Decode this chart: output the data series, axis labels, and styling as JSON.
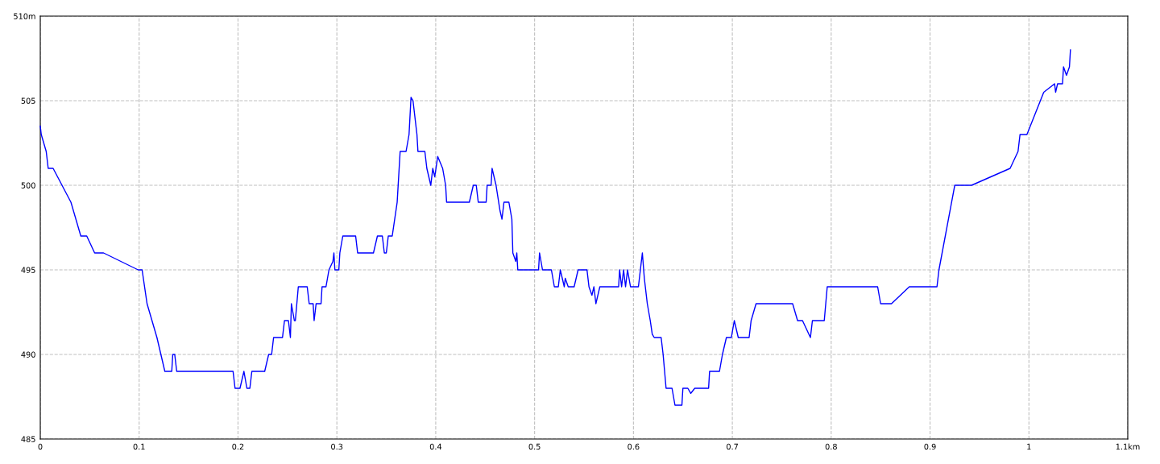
{
  "chart_data": {
    "type": "line",
    "xlim": [
      0,
      1.1
    ],
    "ylim": [
      485,
      510
    ],
    "xticks": [
      0,
      0.1,
      0.2,
      0.3,
      0.4,
      0.5,
      0.6,
      0.7,
      0.8,
      0.9,
      1,
      {
        "value": 1.1,
        "label": "1.1km"
      }
    ],
    "yticks": [
      485,
      490,
      495,
      500,
      505,
      {
        "value": 510,
        "label": "510m"
      }
    ],
    "grid": true,
    "line_style": "solid",
    "marker": "none",
    "series": [
      {
        "color": "#0000ff",
        "x": [
          0,
          0.001,
          0.006,
          0.008,
          0.013,
          0.031,
          0.041,
          0.047,
          0.055,
          0.064,
          0.099,
          0.103,
          0.108,
          0.118,
          0.126,
          0.133,
          0.134,
          0.136,
          0.138,
          0.195,
          0.197,
          0.202,
          0.206,
          0.209,
          0.212,
          0.214,
          0.227,
          0.231,
          0.234,
          0.236,
          0.245,
          0.247,
          0.251,
          0.253,
          0.254,
          0.257,
          0.258,
          0.261,
          0.27,
          0.272,
          0.276,
          0.277,
          0.279,
          0.284,
          0.285,
          0.289,
          0.292,
          0.296,
          0.297,
          0.298,
          0.302,
          0.303,
          0.306,
          0.319,
          0.321,
          0.337,
          0.341,
          0.346,
          0.348,
          0.35,
          0.352,
          0.356,
          0.361,
          0.364,
          0.37,
          0.373,
          0.375,
          0.377,
          0.381,
          0.382,
          0.389,
          0.391,
          0.395,
          0.397,
          0.399,
          0.402,
          0.407,
          0.41,
          0.411,
          0.434,
          0.438,
          0.441,
          0.443,
          0.451,
          0.452,
          0.456,
          0.457,
          0.461,
          0.465,
          0.467,
          0.469,
          0.474,
          0.477,
          0.478,
          0.481,
          0.482,
          0.483,
          0.504,
          0.505,
          0.508,
          0.517,
          0.52,
          0.524,
          0.526,
          0.528,
          0.53,
          0.531,
          0.534,
          0.54,
          0.544,
          0.553,
          0.555,
          0.558,
          0.56,
          0.562,
          0.566,
          0.585,
          0.586,
          0.588,
          0.59,
          0.592,
          0.594,
          0.597,
          0.605,
          0.607,
          0.609,
          0.611,
          0.614,
          0.617,
          0.619,
          0.621,
          0.628,
          0.63,
          0.633,
          0.639,
          0.642,
          0.649,
          0.65,
          0.655,
          0.658,
          0.662,
          0.676,
          0.677,
          0.687,
          0.69,
          0.694,
          0.699,
          0.702,
          0.706,
          0.717,
          0.719,
          0.724,
          0.761,
          0.766,
          0.771,
          0.779,
          0.781,
          0.793,
          0.796,
          0.847,
          0.85,
          0.861,
          0.879,
          0.907,
          0.909,
          0.925,
          0.942,
          0.981,
          0.989,
          0.991,
          0.998,
          1.015,
          1.026,
          1.027,
          1.029,
          1.034,
          1.035,
          1.038,
          1.041,
          1.042
        ],
        "values": [
          503.5,
          503,
          502,
          501,
          501,
          499,
          497,
          497,
          496,
          496,
          495,
          495,
          493,
          491,
          489,
          489,
          490,
          490,
          489,
          489,
          488,
          488,
          489,
          488,
          488,
          489,
          489,
          490,
          490,
          491,
          491,
          492,
          492,
          491,
          493,
          492,
          492,
          494,
          494,
          493,
          493,
          492,
          493,
          493,
          494,
          494,
          495,
          495.5,
          496,
          495,
          495,
          496,
          497,
          497,
          496,
          496,
          497,
          497,
          496,
          496,
          497,
          497,
          499,
          502,
          502,
          503,
          505.2,
          505,
          503,
          502,
          502,
          501,
          500,
          501,
          500.5,
          501.7,
          501,
          500,
          499,
          499,
          500,
          500,
          499,
          499,
          500,
          500,
          501,
          500,
          498.5,
          498,
          499,
          499,
          498,
          496,
          495.5,
          496,
          495,
          495,
          496,
          495,
          495,
          494,
          494,
          495,
          494.5,
          494,
          494.5,
          494,
          494,
          495,
          495,
          494,
          493.5,
          494,
          493,
          494,
          494,
          495,
          494,
          495,
          494,
          495,
          494,
          494,
          495,
          496,
          494.5,
          493,
          492,
          491.2,
          491,
          491,
          490,
          488,
          488,
          487,
          487,
          488,
          488,
          487.7,
          488,
          488,
          489,
          489,
          490,
          491,
          491,
          492,
          491,
          491,
          492,
          493,
          493,
          492,
          492,
          491,
          492,
          492,
          494,
          494,
          493,
          493,
          494,
          494,
          495,
          500,
          500,
          501,
          502,
          503,
          503,
          505.5,
          506,
          505.5,
          506,
          506,
          507,
          506.5,
          507,
          508
        ]
      }
    ]
  }
}
